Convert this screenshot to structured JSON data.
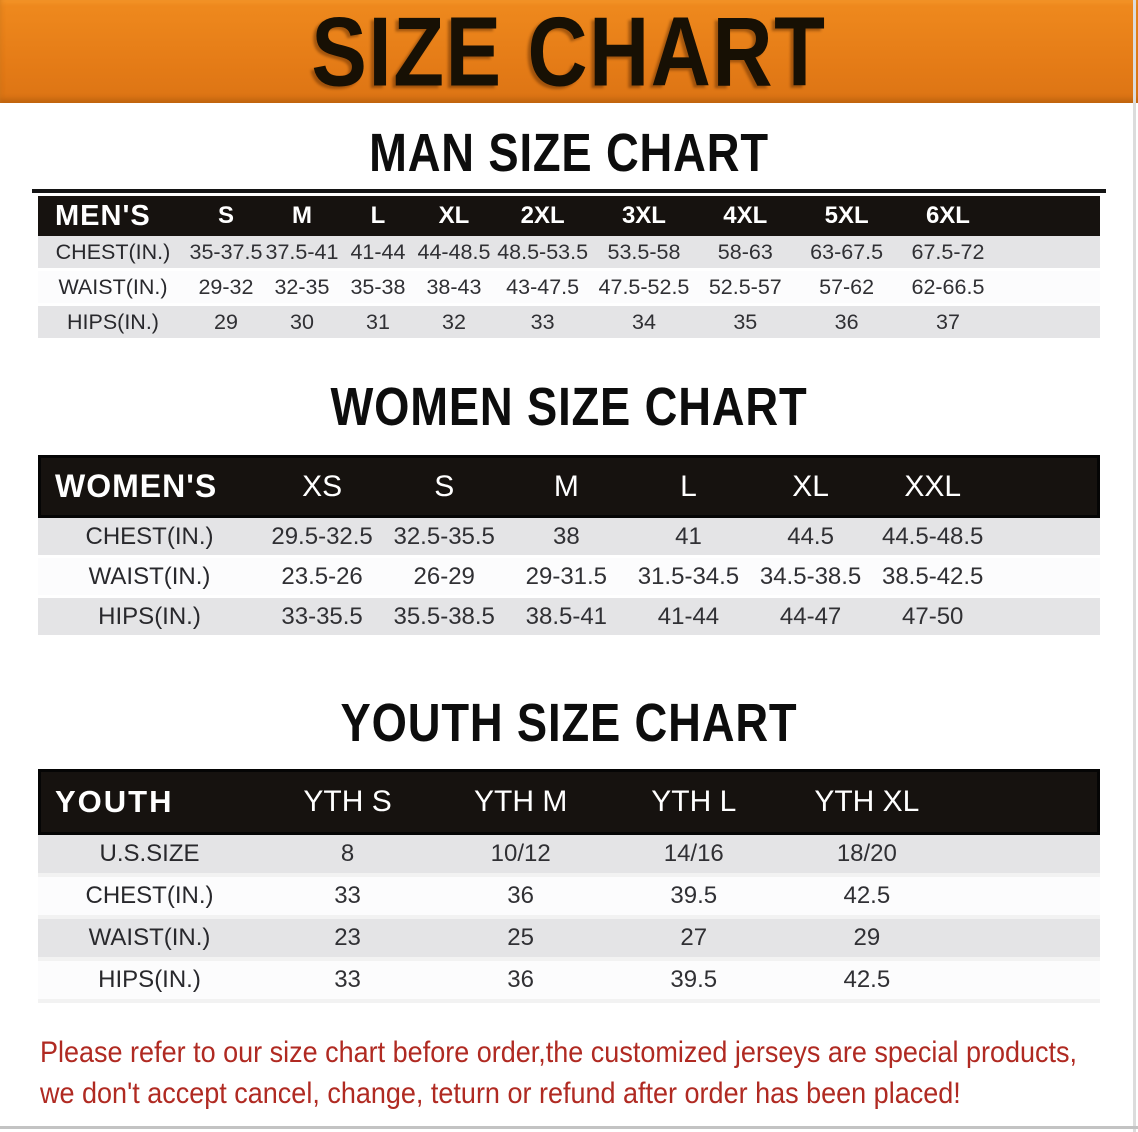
{
  "banner": {
    "title": "SIZE CHART"
  },
  "sections": [
    {
      "id": "men",
      "heading": "MAN SIZE CHART",
      "top_rule": true,
      "table": {
        "corner_label": "MEN'S",
        "columns": [
          "S",
          "M",
          "L",
          "XL",
          "2XL",
          "3XL",
          "4XL",
          "5XL",
          "6XL"
        ],
        "rows": [
          {
            "label": "CHEST(IN.)",
            "values": [
              "35-37.5",
              "37.5-41",
              "41-44",
              "44-48.5",
              "48.5-53.5",
              "53.5-58",
              "58-63",
              "63-67.5",
              "67.5-72"
            ]
          },
          {
            "label": "WAIST(IN.)",
            "values": [
              "29-32",
              "32-35",
              "35-38",
              "38-43",
              "43-47.5",
              "47.5-52.5",
              "52.5-57",
              "57-62",
              "62-66.5"
            ]
          },
          {
            "label": "HIPS(IN.)",
            "values": [
              "29",
              "30",
              "31",
              "32",
              "33",
              "34",
              "35",
              "36",
              "37"
            ]
          }
        ]
      }
    },
    {
      "id": "women",
      "heading": "WOMEN SIZE CHART",
      "top_rule": false,
      "table": {
        "corner_label": "WOMEN'S",
        "columns": [
          "XS",
          "S",
          "M",
          "L",
          "XL",
          "XXL"
        ],
        "rows": [
          {
            "label": "CHEST(IN.)",
            "values": [
              "29.5-32.5",
              "32.5-35.5",
              "38",
              "41",
              "44.5",
              "44.5-48.5"
            ]
          },
          {
            "label": "WAIST(IN.)",
            "values": [
              "23.5-26",
              "26-29",
              "29-31.5",
              "31.5-34.5",
              "34.5-38.5",
              "38.5-42.5"
            ]
          },
          {
            "label": "HIPS(IN.)",
            "values": [
              "33-35.5",
              "35.5-38.5",
              "38.5-41",
              "41-44",
              "44-47",
              "47-50"
            ]
          }
        ]
      }
    },
    {
      "id": "youth",
      "heading": "YOUTH SIZE CHART",
      "top_rule": false,
      "table": {
        "corner_label": "YOUTH",
        "columns": [
          "YTH S",
          "YTH M",
          "YTH L",
          "YTH XL"
        ],
        "rows": [
          {
            "label": "U.S.SIZE",
            "values": [
              "8",
              "10/12",
              "14/16",
              "18/20"
            ]
          },
          {
            "label": "CHEST(IN.)",
            "values": [
              "33",
              "36",
              "39.5",
              "42.5"
            ]
          },
          {
            "label": "WAIST(IN.)",
            "values": [
              "23",
              "25",
              "27",
              "29"
            ]
          },
          {
            "label": "HIPS(IN.)",
            "values": [
              "33",
              "36",
              "39.5",
              "42.5"
            ]
          }
        ]
      }
    }
  ],
  "footer": {
    "line1": "Please refer to our size chart before order,the customized jerseys are special products,",
    "line2": "we don't accept cancel, change, teturn or refund after order has been placed!"
  },
  "colors": {
    "banner_orange": "#e57c17",
    "header_bar_black": "#16120f",
    "stripe_gray": "#e4e4e6",
    "notice_red": "#b02a22",
    "title_black": "#171004"
  }
}
